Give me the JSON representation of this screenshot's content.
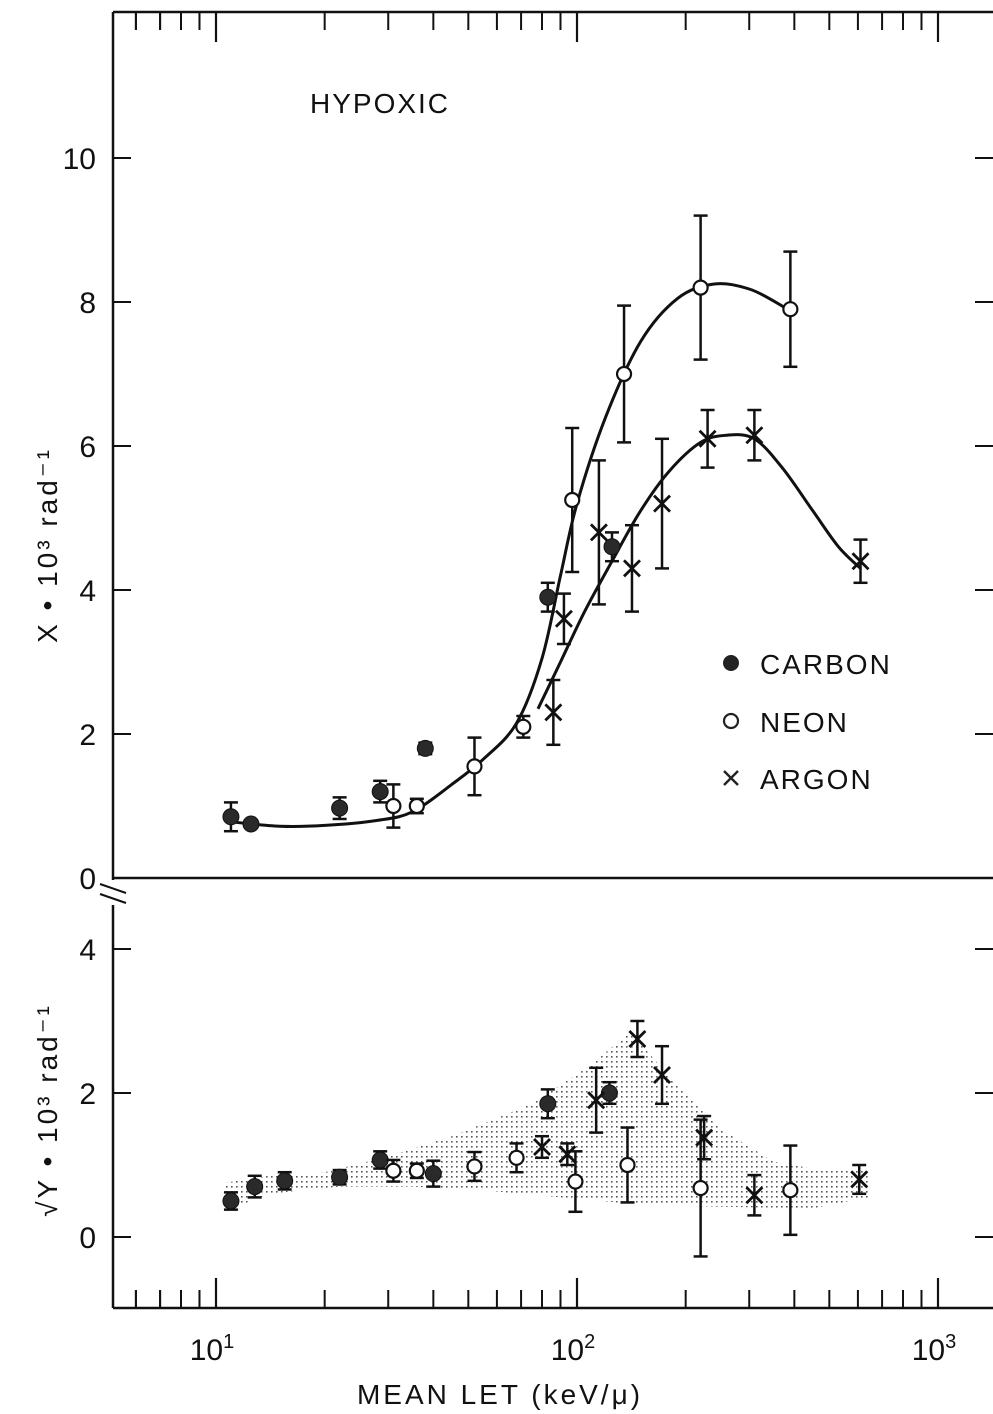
{
  "chart_data": {
    "type": "scatter",
    "panel_label": "HYPOXIC",
    "xlabel": "MEAN LET (keV/μ)",
    "xscale": "log",
    "xlim": [
      5,
      1200
    ],
    "x_tick_labels": [
      {
        "value": 10,
        "base": "10",
        "exp": "1"
      },
      {
        "value": 100,
        "base": "10",
        "exp": "2"
      },
      {
        "value": 1000,
        "base": "10",
        "exp": "3"
      }
    ],
    "legend": {
      "placement": "right",
      "entries": [
        {
          "symbol": "filled-circle",
          "label": "CARBON"
        },
        {
          "symbol": "open-circle",
          "label": "NEON"
        },
        {
          "symbol": "cross",
          "label": "ARGON"
        }
      ]
    },
    "top_panel": {
      "ylabel": "X • 10³ rad⁻¹",
      "ylim": [
        0,
        12
      ],
      "y_ticks": [
        "0",
        "2",
        "4",
        "6",
        "8",
        "10"
      ],
      "series": [
        {
          "name": "CARBON",
          "symbol": "filled-circle",
          "points": [
            {
              "x": 11,
              "y": 0.85,
              "err": 0.2
            },
            {
              "x": 12.5,
              "y": 0.75,
              "err": 0.05
            },
            {
              "x": 22,
              "y": 0.97,
              "err": 0.15
            },
            {
              "x": 28.5,
              "y": 1.2,
              "err": 0.15
            },
            {
              "x": 38,
              "y": 1.8,
              "err": 0.08
            },
            {
              "x": 83,
              "y": 3.9,
              "err": 0.2
            },
            {
              "x": 125,
              "y": 4.6,
              "err": 0.2
            }
          ]
        },
        {
          "name": "NEON",
          "symbol": "open-circle",
          "points": [
            {
              "x": 31,
              "y": 1.0,
              "err": 0.3
            },
            {
              "x": 36,
              "y": 1.0,
              "err": 0.1
            },
            {
              "x": 52,
              "y": 1.55,
              "err": 0.4
            },
            {
              "x": 71,
              "y": 2.1,
              "err": 0.15
            },
            {
              "x": 97,
              "y": 5.25,
              "err": 1.0
            },
            {
              "x": 135,
              "y": 7.0,
              "err": 0.95
            },
            {
              "x": 220,
              "y": 8.2,
              "err": 1.0
            },
            {
              "x": 390,
              "y": 7.9,
              "err": 0.8
            }
          ]
        },
        {
          "name": "ARGON",
          "symbol": "cross",
          "points": [
            {
              "x": 86,
              "y": 2.3,
              "err": 0.45
            },
            {
              "x": 92,
              "y": 3.6,
              "err": 0.35
            },
            {
              "x": 115,
              "y": 4.8,
              "err": 1.0
            },
            {
              "x": 142,
              "y": 4.3,
              "err": 0.6
            },
            {
              "x": 172,
              "y": 5.2,
              "err": 0.9
            },
            {
              "x": 230,
              "y": 6.1,
              "err": 0.4
            },
            {
              "x": 310,
              "y": 6.15,
              "err": 0.35
            },
            {
              "x": 610,
              "y": 4.4,
              "err": 0.3
            }
          ]
        }
      ],
      "fit_curves": [
        {
          "name": "NEON",
          "points": [
            [
              11,
              0.78
            ],
            [
              15,
              0.72
            ],
            [
              20,
              0.73
            ],
            [
              28,
              0.8
            ],
            [
              35,
              0.92
            ],
            [
              45,
              1.3
            ],
            [
              55,
              1.65
            ],
            [
              68,
              2.15
            ],
            [
              80,
              3.05
            ],
            [
              90,
              4.2
            ],
            [
              100,
              5.2
            ],
            [
              120,
              6.4
            ],
            [
              150,
              7.45
            ],
            [
              190,
              8.05
            ],
            [
              240,
              8.25
            ],
            [
              300,
              8.18
            ],
            [
              360,
              7.98
            ],
            [
              395,
              7.85
            ]
          ]
        },
        {
          "name": "ARGON",
          "points": [
            [
              78,
              2.35
            ],
            [
              90,
              3.0
            ],
            [
              105,
              3.7
            ],
            [
              125,
              4.4
            ],
            [
              150,
              5.1
            ],
            [
              180,
              5.65
            ],
            [
              220,
              6.05
            ],
            [
              260,
              6.15
            ],
            [
              310,
              6.1
            ],
            [
              370,
              5.7
            ],
            [
              450,
              5.1
            ],
            [
              530,
              4.6
            ],
            [
              610,
              4.3
            ]
          ]
        }
      ]
    },
    "bottom_panel": {
      "ylabel": "√Y • 10³ rad⁻¹",
      "ylim": [
        -1,
        4.5
      ],
      "y_ticks": [
        "0",
        "2",
        "4"
      ],
      "shaded_band": [
        [
          10.5,
          0.35
        ],
        [
          14,
          0.6
        ],
        [
          22,
          0.7
        ],
        [
          35,
          0.7
        ],
        [
          55,
          0.65
        ],
        [
          90,
          0.55
        ],
        [
          150,
          0.45
        ],
        [
          250,
          0.42
        ],
        [
          450,
          0.4
        ],
        [
          640,
          0.55
        ],
        [
          640,
          0.95
        ],
        [
          450,
          0.95
        ],
        [
          350,
          1.05
        ],
        [
          250,
          1.5
        ],
        [
          190,
          2.1
        ],
        [
          140,
          2.85
        ],
        [
          110,
          2.4
        ],
        [
          75,
          1.85
        ],
        [
          45,
          1.4
        ],
        [
          30,
          1.12
        ],
        [
          20,
          0.9
        ],
        [
          14,
          0.85
        ],
        [
          10.5,
          0.75
        ]
      ],
      "series": [
        {
          "name": "CARBON",
          "symbol": "filled-circle",
          "points": [
            {
              "x": 11,
              "y": 0.5,
              "err": 0.12
            },
            {
              "x": 12.8,
              "y": 0.7,
              "err": 0.15
            },
            {
              "x": 15.5,
              "y": 0.78,
              "err": 0.12
            },
            {
              "x": 22,
              "y": 0.83,
              "err": 0.1
            },
            {
              "x": 28.5,
              "y": 1.07,
              "err": 0.12
            },
            {
              "x": 40,
              "y": 0.88,
              "err": 0.18
            },
            {
              "x": 83,
              "y": 1.85,
              "err": 0.2
            },
            {
              "x": 123,
              "y": 2.0,
              "err": 0.15
            }
          ]
        },
        {
          "name": "NEON",
          "symbol": "open-circle",
          "points": [
            {
              "x": 31,
              "y": 0.92,
              "err": 0.15
            },
            {
              "x": 36,
              "y": 0.92,
              "err": 0.1
            },
            {
              "x": 52,
              "y": 0.98,
              "err": 0.2
            },
            {
              "x": 68,
              "y": 1.1,
              "err": 0.2
            },
            {
              "x": 99,
              "y": 0.77,
              "err": 0.42
            },
            {
              "x": 138,
              "y": 1.0,
              "err": 0.52
            },
            {
              "x": 220,
              "y": 0.68,
              "err": 0.95
            },
            {
              "x": 390,
              "y": 0.65,
              "err": 0.62
            }
          ]
        },
        {
          "name": "ARGON",
          "symbol": "cross",
          "points": [
            {
              "x": 80,
              "y": 1.25,
              "err": 0.15
            },
            {
              "x": 94,
              "y": 1.15,
              "err": 0.15
            },
            {
              "x": 113,
              "y": 1.9,
              "err": 0.45
            },
            {
              "x": 147,
              "y": 2.75,
              "err": 0.25
            },
            {
              "x": 172,
              "y": 2.25,
              "err": 0.4
            },
            {
              "x": 225,
              "y": 1.38,
              "err": 0.3
            },
            {
              "x": 310,
              "y": 0.58,
              "err": 0.28
            },
            {
              "x": 605,
              "y": 0.8,
              "err": 0.2
            }
          ]
        }
      ]
    }
  }
}
